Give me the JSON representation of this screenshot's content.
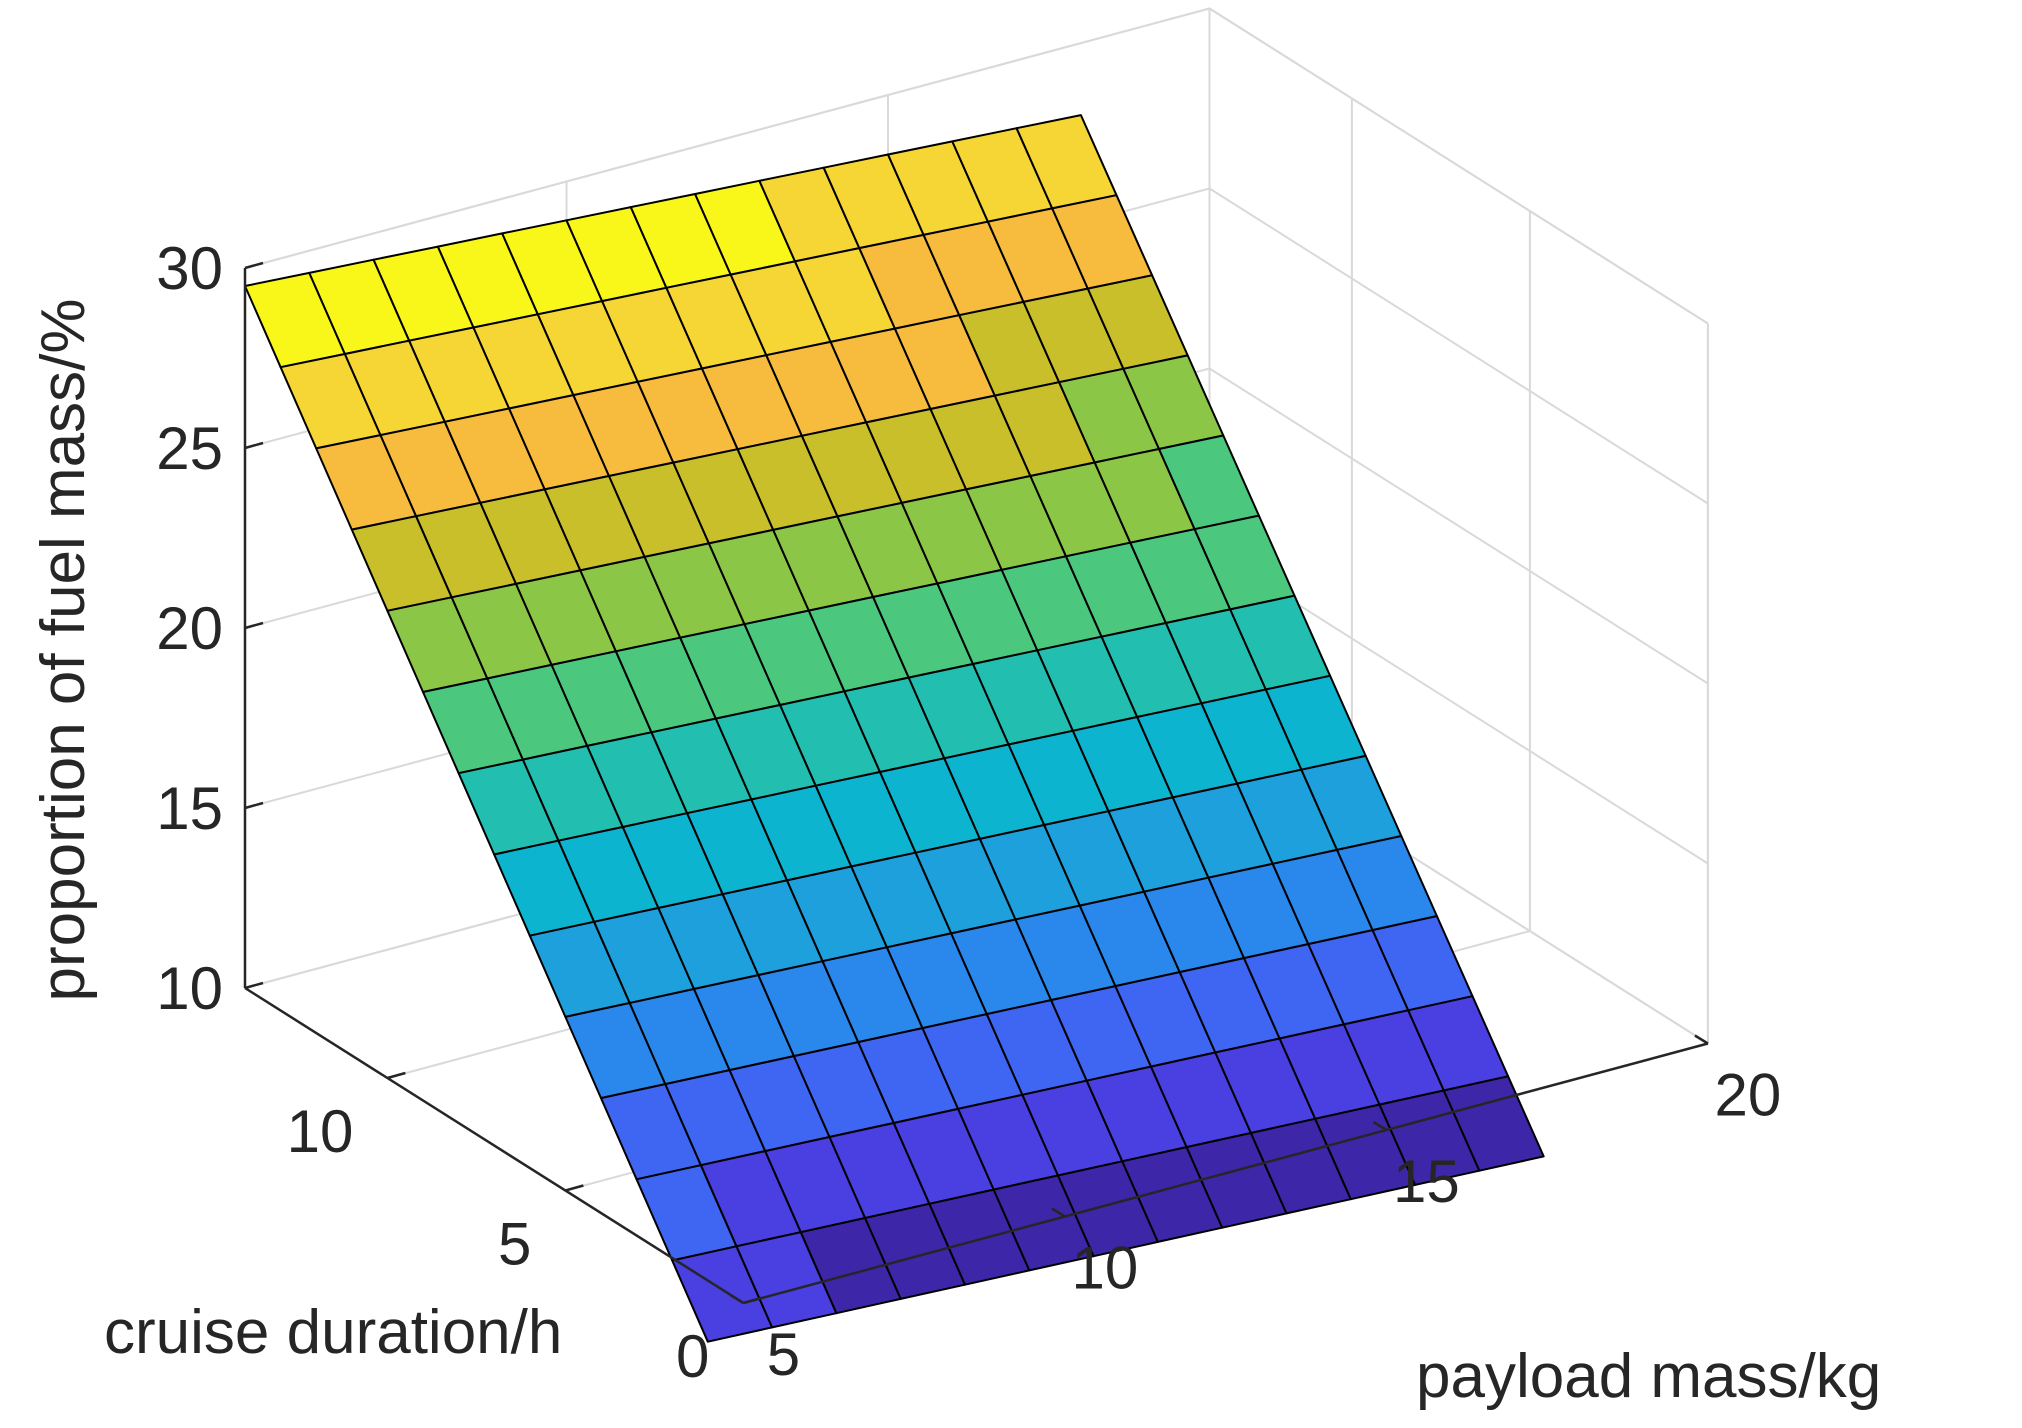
{
  "chart_data": {
    "type": "surface",
    "title": "",
    "x_axis": {
      "label": "payload mass/kg",
      "range": [
        5,
        20
      ],
      "ticks": [
        5,
        10,
        15,
        20
      ],
      "tick_labels": [
        "5",
        "10",
        "15",
        "20"
      ]
    },
    "y_axis": {
      "label": "cruise duration/h",
      "range": [
        0,
        14
      ],
      "ticks": [
        0,
        5,
        10
      ],
      "tick_labels": [
        "0",
        "5",
        "10"
      ]
    },
    "z_axis": {
      "label": "proportion of fuel mass/%",
      "range": [
        10,
        30
      ],
      "ticks": [
        10,
        15,
        20,
        25,
        30
      ],
      "tick_labels": [
        "10",
        "15",
        "20",
        "25",
        "30"
      ]
    },
    "surface": {
      "x": [
        5,
        6,
        7,
        8,
        9,
        10,
        11,
        12,
        13,
        14,
        15,
        16,
        17,
        18
      ],
      "y": [
        1,
        2,
        3,
        4,
        5,
        6,
        7,
        8,
        9,
        10,
        11,
        12,
        13,
        14
      ],
      "z_corners": {
        "x5_y1": 8.3,
        "x18_y1": 7.2,
        "x5_y14": 29.5,
        "x18_y14": 28.0
      }
    },
    "colormap": "parula",
    "colormap_stops": [
      "#3e26a8",
      "#4a3fe0",
      "#3e66f2",
      "#2a87ec",
      "#1da0dc",
      "#0db4cf",
      "#22bfb0",
      "#4bc87e",
      "#8cc646",
      "#c8bf2a",
      "#f7bb3d",
      "#f6d634",
      "#f9f719"
    ],
    "grid": true,
    "box": true
  }
}
